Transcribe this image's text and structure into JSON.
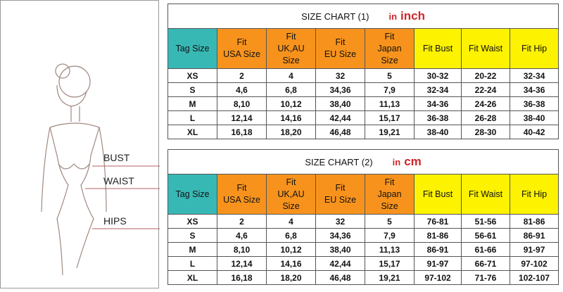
{
  "figure": {
    "labels": [
      "BUST",
      "WAIST",
      "HIPS"
    ]
  },
  "tables": [
    {
      "title": "SIZE CHART (1)",
      "unit_prefix": "in",
      "unit": "inch",
      "headers": [
        [
          "Tag Size"
        ],
        [
          "Fit",
          "USA Size"
        ],
        [
          "Fit",
          "UK,AU",
          "Size"
        ],
        [
          "Fit",
          "EU Size"
        ],
        [
          "Fit",
          "Japan",
          "Size"
        ],
        [
          "Fit Bust"
        ],
        [
          "Fit Waist"
        ],
        [
          "Fit Hip"
        ]
      ],
      "rows": [
        [
          "XS",
          "2",
          "4",
          "32",
          "5",
          "30-32",
          "20-22",
          "32-34"
        ],
        [
          "S",
          "4,6",
          "6,8",
          "34,36",
          "7,9",
          "32-34",
          "22-24",
          "34-36"
        ],
        [
          "M",
          "8,10",
          "10,12",
          "38,40",
          "11,13",
          "34-36",
          "24-26",
          "36-38"
        ],
        [
          "L",
          "12,14",
          "14,16",
          "42,44",
          "15,17",
          "36-38",
          "26-28",
          "38-40"
        ],
        [
          "XL",
          "16,18",
          "18,20",
          "46,48",
          "19,21",
          "38-40",
          "28-30",
          "40-42"
        ]
      ]
    },
    {
      "title": "SIZE CHART (2)",
      "unit_prefix": "in",
      "unit": "cm",
      "headers": [
        [
          "Tag Size"
        ],
        [
          "Fit",
          "USA Size"
        ],
        [
          "Fit",
          "UK,AU",
          "Size"
        ],
        [
          "Fit",
          "EU Size"
        ],
        [
          "Fit",
          "Japan",
          "Size"
        ],
        [
          "Fit Bust"
        ],
        [
          "Fit Waist"
        ],
        [
          "Fit Hip"
        ]
      ],
      "rows": [
        [
          "XS",
          "2",
          "4",
          "32",
          "5",
          "76-81",
          "51-56",
          "81-86"
        ],
        [
          "S",
          "4,6",
          "6,8",
          "34,36",
          "7,9",
          "81-86",
          "56-61",
          "86-91"
        ],
        [
          "M",
          "8,10",
          "10,12",
          "38,40",
          "11,13",
          "86-91",
          "61-66",
          "91-97"
        ],
        [
          "L",
          "12,14",
          "14,16",
          "42,44",
          "15,17",
          "91-97",
          "66-71",
          "97-102"
        ],
        [
          "XL",
          "16,18",
          "18,20",
          "46,48",
          "19,21",
          "97-102",
          "71-76",
          "102-107"
        ]
      ]
    }
  ]
}
